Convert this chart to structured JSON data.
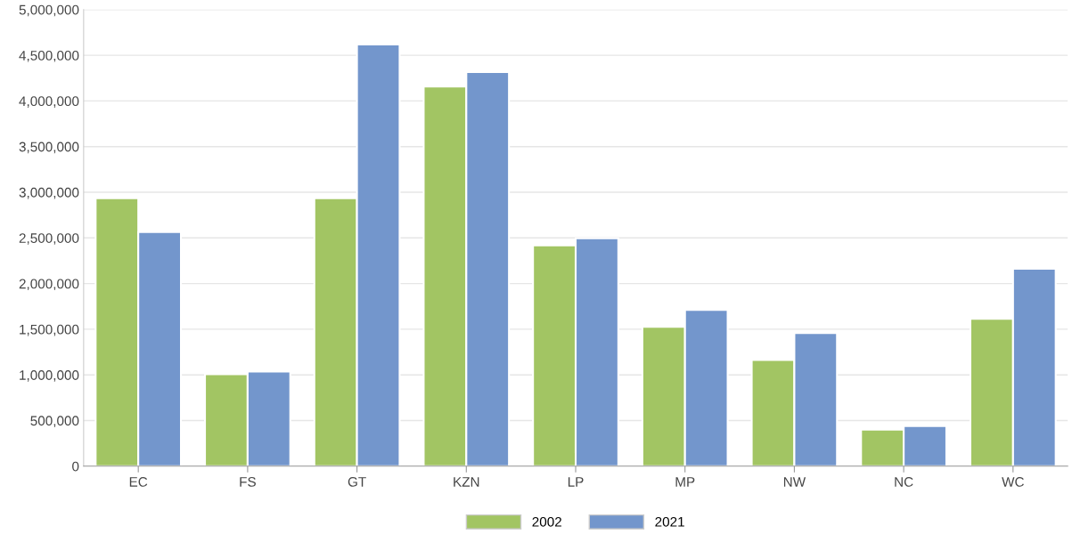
{
  "chart_data": {
    "type": "bar",
    "categories": [
      "EC",
      "FS",
      "GT",
      "KZN",
      "LP",
      "MP",
      "NW",
      "NC",
      "WC"
    ],
    "series": [
      {
        "name": "2002",
        "color": "#a2c563",
        "values": [
          2935000,
          1008000,
          2935000,
          4159000,
          2417000,
          1526000,
          1164000,
          401000,
          1614000
        ]
      },
      {
        "name": "2021",
        "color": "#7396cc",
        "values": [
          2564000,
          1037000,
          4618000,
          4315000,
          2495000,
          1712000,
          1458000,
          440000,
          2162000
        ]
      }
    ],
    "ylim": [
      0,
      5000000
    ],
    "yticks": [
      {
        "value": 0,
        "label": "0"
      },
      {
        "value": 500000,
        "label": "500,000"
      },
      {
        "value": 1000000,
        "label": "1,000,000"
      },
      {
        "value": 1500000,
        "label": "1,500,000"
      },
      {
        "value": 2000000,
        "label": "2,000,000"
      },
      {
        "value": 2500000,
        "label": "2,500,000"
      },
      {
        "value": 3000000,
        "label": "3,000,000"
      },
      {
        "value": 3500000,
        "label": "3,500,000"
      },
      {
        "value": 4000000,
        "label": "4,000,000"
      },
      {
        "value": 4500000,
        "label": "4,500,000"
      },
      {
        "value": 5000000,
        "label": "5,000,000"
      }
    ],
    "grid": "y",
    "legend": "bottom"
  }
}
